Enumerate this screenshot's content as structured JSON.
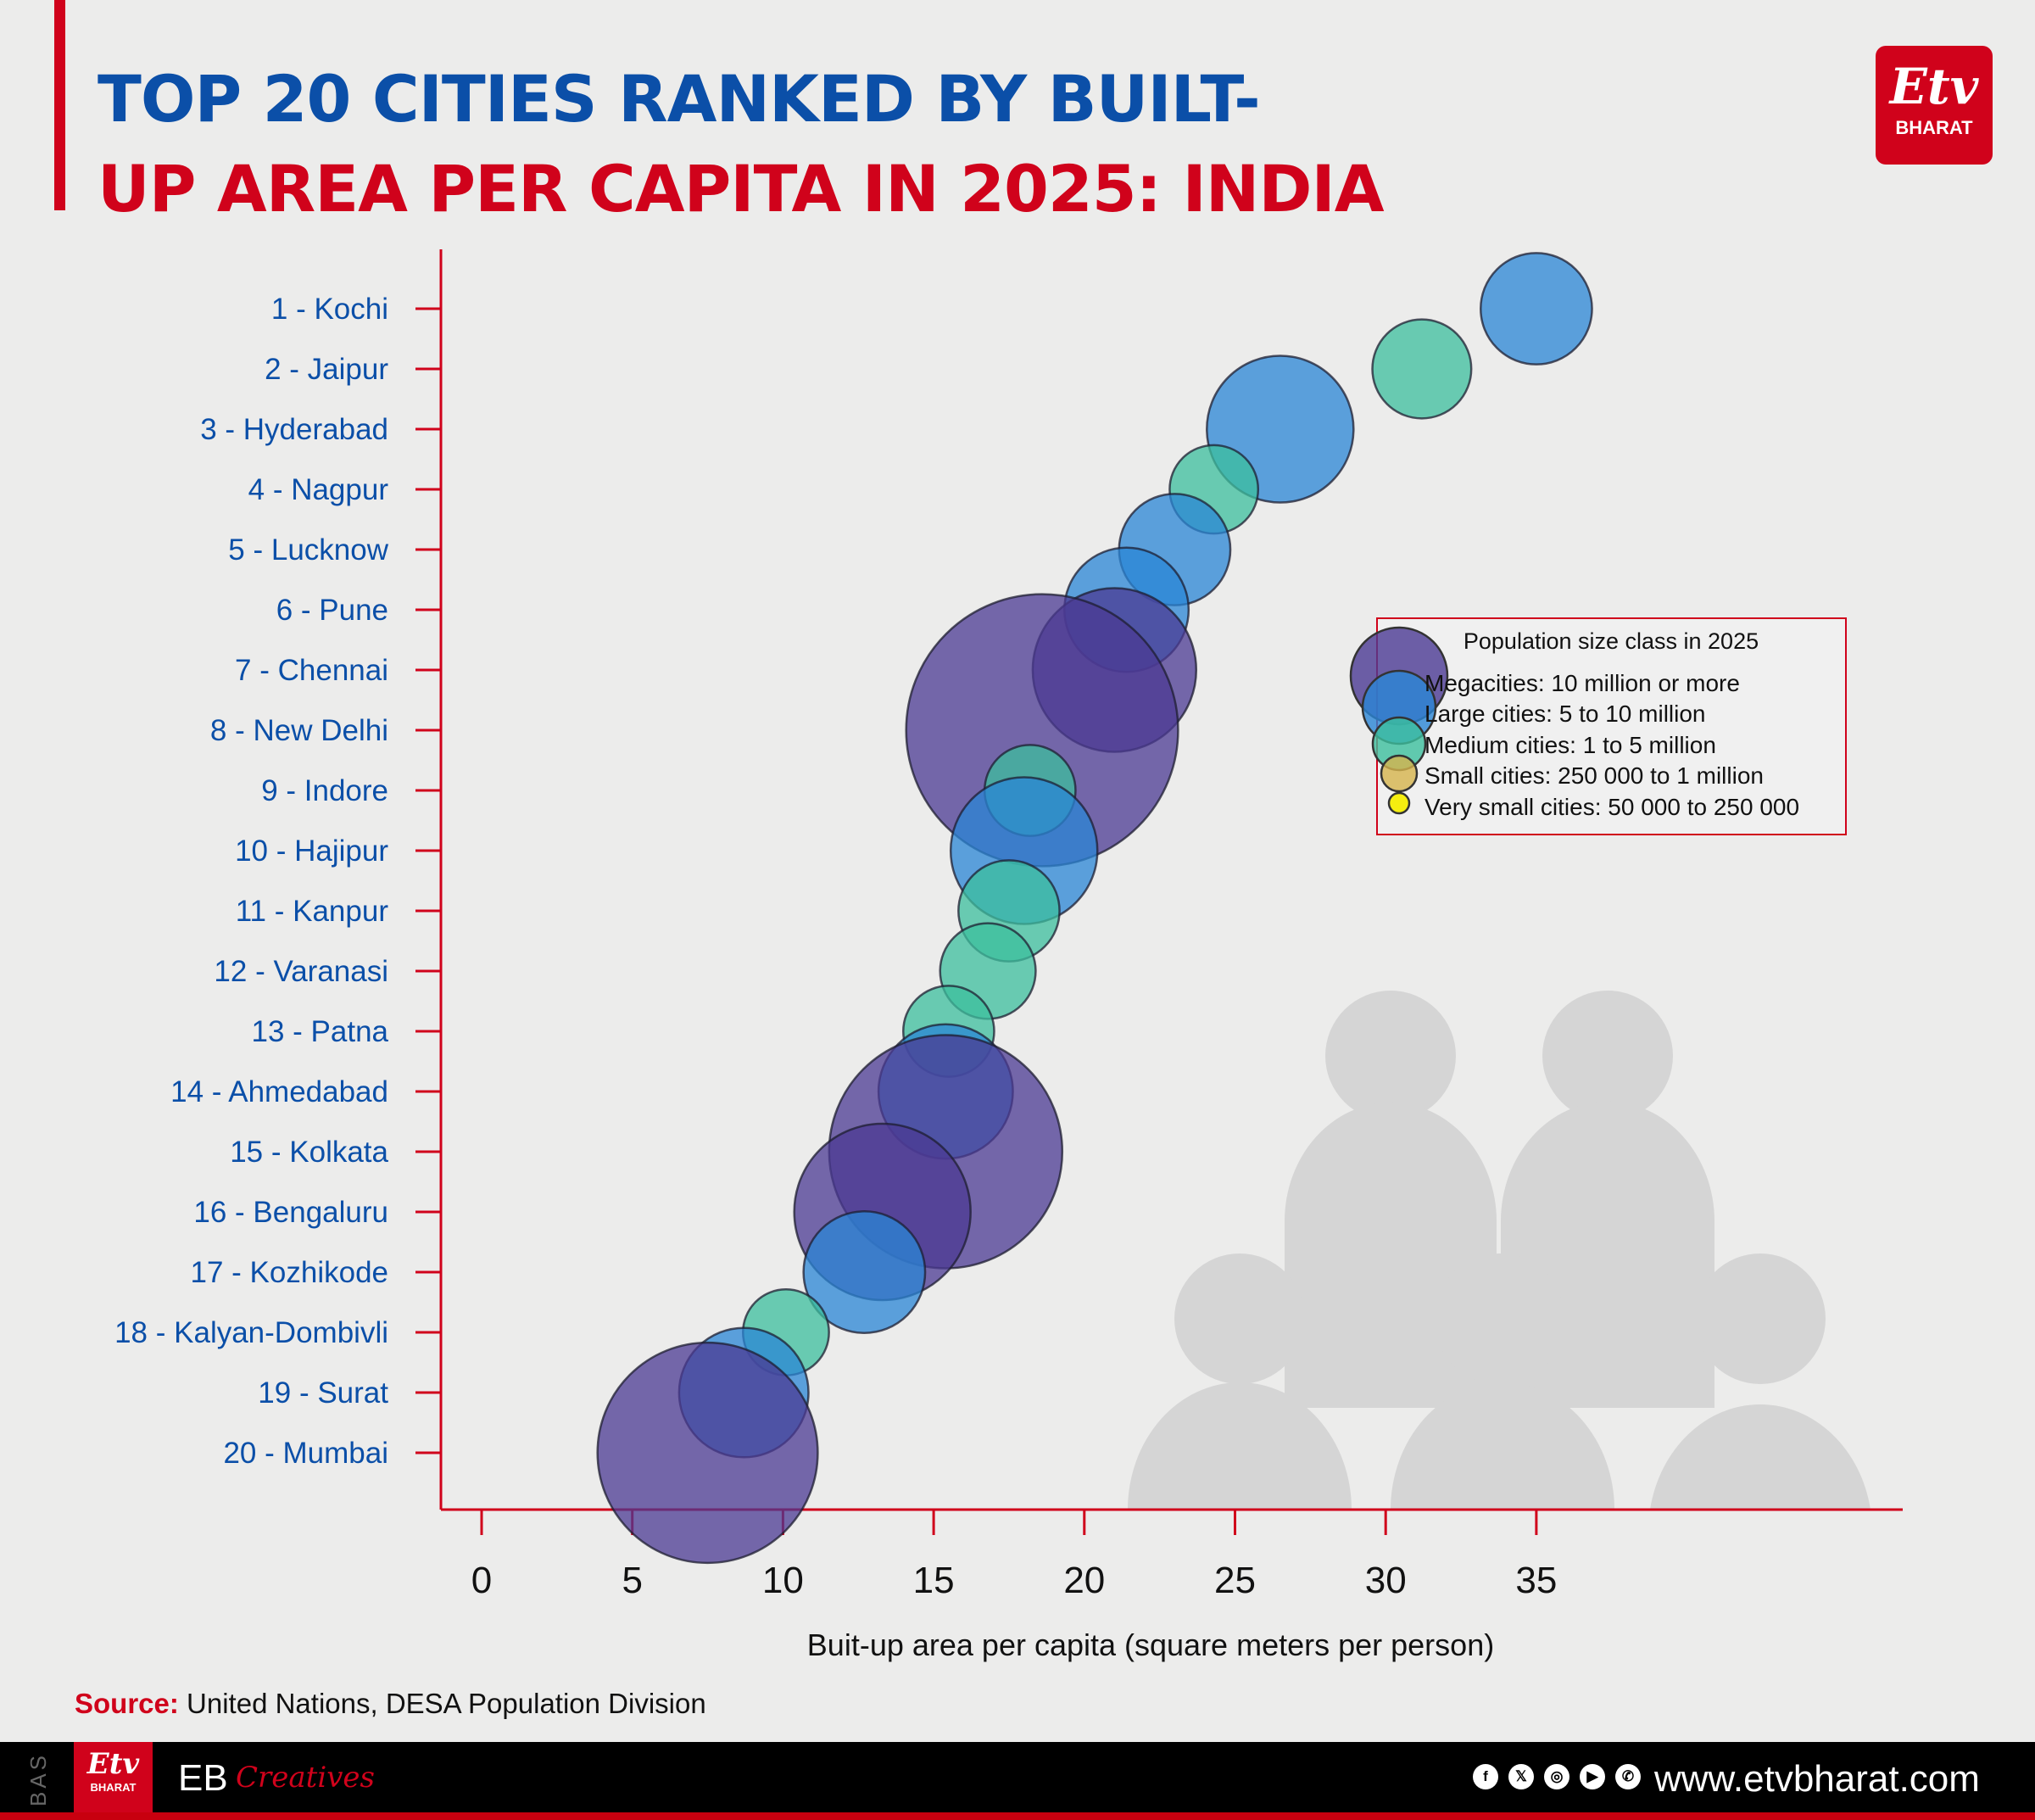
{
  "header": {
    "title_line1": "TOP 20 CITIES RANKED BY BUILT-",
    "title_line2": "UP AREA PER CAPITA IN 2025: INDIA",
    "title_line1_color": "#0b4fa8",
    "title_line2_color": "#d0021b",
    "logo_text": "BHARAT"
  },
  "chart_data": {
    "type": "scatter",
    "subtype": "bubble",
    "xlabel": "Buit-up area per capita (square meters per person)",
    "ylabel": "",
    "xlim": [
      0,
      35
    ],
    "xticks": [
      0,
      5,
      10,
      15,
      20,
      25,
      30,
      35
    ],
    "grid": false,
    "legend": {
      "title": "Population size class in 2025",
      "placement": "right",
      "classes": [
        {
          "key": "mega",
          "label": "Megacities: 10 million or more",
          "color": "#4b3a93"
        },
        {
          "key": "large",
          "label": "Large cities: 5 to 10 million",
          "color": "#2a86d6"
        },
        {
          "key": "medium",
          "label": "Medium cities: 1 to 5 million",
          "color": "#3cbf9e"
        },
        {
          "key": "small",
          "label": "Small cities: 250 000 to 1 million",
          "color": "#d6b44c"
        },
        {
          "key": "very_small",
          "label": "Very small cities: 50 000 to 250 000",
          "color": "#f5ee10"
        }
      ]
    },
    "points": [
      {
        "label": "1 - Kochi",
        "x": 35.0,
        "class": "large",
        "population_millions": 5.7
      },
      {
        "label": "2 - Jaipur",
        "x": 31.2,
        "class": "medium",
        "population_millions": 4.5
      },
      {
        "label": "3 - Hyderabad",
        "x": 26.5,
        "class": "large",
        "population_millions": 9.9
      },
      {
        "label": "4 - Nagpur",
        "x": 24.3,
        "class": "medium",
        "population_millions": 3.6
      },
      {
        "label": "5 - Lucknow",
        "x": 23.0,
        "class": "large",
        "population_millions": 5.7
      },
      {
        "label": "6 - Pune",
        "x": 21.4,
        "class": "large",
        "population_millions": 7.1
      },
      {
        "label": "7 - Chennai",
        "x": 21.0,
        "class": "mega",
        "population_millions": 12.3
      },
      {
        "label": "8 - New Delhi",
        "x": 18.6,
        "class": "mega",
        "population_millions": 34.0
      },
      {
        "label": "9 - Indore",
        "x": 18.2,
        "class": "medium",
        "population_millions": 3.8
      },
      {
        "label": "10 - Hajipur",
        "x": 18.0,
        "class": "large",
        "population_millions": 9.9
      },
      {
        "label": "11 - Kanpur",
        "x": 17.5,
        "class": "medium",
        "population_millions": 4.7
      },
      {
        "label": "12 - Varanasi",
        "x": 16.8,
        "class": "medium",
        "population_millions": 4.2
      },
      {
        "label": "13 - Patna",
        "x": 15.5,
        "class": "medium",
        "population_millions": 3.8
      },
      {
        "label": "14 - Ahmedabad",
        "x": 15.4,
        "class": "large",
        "population_millions": 8.3
      },
      {
        "label": "15 - Kolkata",
        "x": 15.4,
        "class": "mega",
        "population_millions": 25.0
      },
      {
        "label": "16 - Bengaluru",
        "x": 13.3,
        "class": "mega",
        "population_millions": 14.3
      },
      {
        "label": "17 - Kozhikode",
        "x": 12.7,
        "class": "large",
        "population_millions": 6.8
      },
      {
        "label": "18 - Kalyan-Dombivli",
        "x": 10.1,
        "class": "medium",
        "population_millions": 3.4
      },
      {
        "label": "19 - Surat",
        "x": 8.7,
        "class": "large",
        "population_millions": 7.7
      },
      {
        "label": "20 - Mumbai",
        "x": 7.5,
        "class": "mega",
        "population_millions": 22.3
      }
    ]
  },
  "source": {
    "label": "Source:",
    "text": " United Nations, DESA Population Division"
  },
  "footer": {
    "side_text": "BAS",
    "logo_text": "BHARAT",
    "eb": "EB",
    "creatives": "Creatives",
    "social_icons": [
      "facebook-icon",
      "x-icon",
      "instagram-icon",
      "youtube-icon",
      "whatsapp-icon"
    ],
    "url": "www.etvbharat.com"
  }
}
